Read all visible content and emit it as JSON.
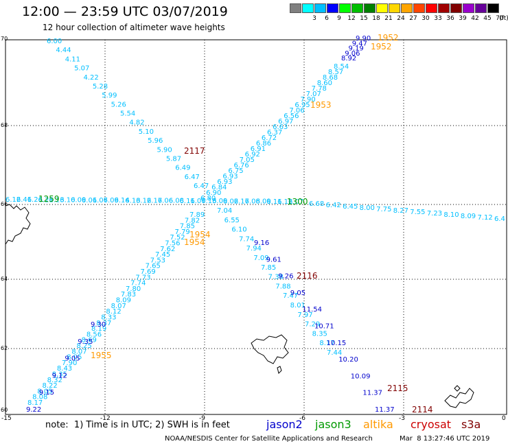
{
  "title": "12:00  —  23:59  UTC  03/07/2019",
  "subtitle": "12 hour collection of altimeter wave heights",
  "colorbar": {
    "unit": "(ft)",
    "bins": [
      {
        "label": "",
        "color": "#808080"
      },
      {
        "label": "3",
        "color": "#00ffff"
      },
      {
        "label": "6",
        "color": "#00bfff"
      },
      {
        "label": "9",
        "color": "#0000ff"
      },
      {
        "label": "12",
        "color": "#00ff00"
      },
      {
        "label": "15",
        "color": "#00bf00"
      },
      {
        "label": "18",
        "color": "#008000"
      },
      {
        "label": "21",
        "color": "#ffff00"
      },
      {
        "label": "24",
        "color": "#ffd700"
      },
      {
        "label": "27",
        "color": "#ffa500"
      },
      {
        "label": "30",
        "color": "#ff4500"
      },
      {
        "label": "33",
        "color": "#ff0000"
      },
      {
        "label": "36",
        "color": "#a00000"
      },
      {
        "label": "39",
        "color": "#800000"
      },
      {
        "label": "42",
        "color": "#9900cc"
      },
      {
        "label": "45",
        "color": "#660099"
      },
      {
        "label": "70",
        "color": "#000000"
      }
    ]
  },
  "axes": {
    "lat_labels": [
      "70",
      "68",
      "66",
      "64",
      "62",
      "60"
    ],
    "lon_labels": [
      "-15",
      "-12",
      "-9",
      "-6",
      "-3",
      "0"
    ]
  },
  "satellites": [
    {
      "name": "jason2",
      "color": "#0000cc"
    },
    {
      "name": "jason3",
      "color": "#009900"
    },
    {
      "name": "altika",
      "color": "#ff9900"
    },
    {
      "name": "cryosat",
      "color": "#cc0000"
    },
    {
      "name": "s3a",
      "color": "#800000"
    }
  ],
  "track_colors": {
    "cyan": "#00bfff",
    "blue": "#0000cc",
    "green": "#009900",
    "orange": "#ff9900",
    "darkred": "#800000"
  },
  "tracks": {
    "track_a": {
      "cyan": [
        "6.00",
        "4.44",
        "4.11",
        "5.07",
        "4.22",
        "5.28",
        "5.99",
        "5.26",
        "5.54",
        "4.82",
        "5.10",
        "5.96",
        "5.90",
        "5.87",
        "6.49",
        "6.47",
        "6.47"
      ],
      "time": "2117"
    },
    "track_b": {
      "cyan": [
        "7.04",
        "6.55",
        "6.10",
        "7.74",
        "7.94",
        "7.09",
        "7.85",
        "7.38",
        "7.88",
        "7.47",
        "8.01",
        "7.97",
        "7.29",
        "8.35",
        "8.17",
        "7.44"
      ],
      "blue": [
        "9.16",
        "9.61",
        "9.26",
        "9.05",
        "11.54",
        "10.71",
        "10.15",
        "10.20",
        "10.09",
        "11.37",
        "11.37"
      ],
      "time_mid": "2116",
      "time_end": "2115",
      "time_end2": "2114"
    },
    "track_c": {
      "blue": [
        "9.90",
        "9.47",
        "9.19",
        "9.06",
        "8.92"
      ],
      "cyan": [
        "8.54",
        "8.57",
        "8.68",
        "8.60",
        "7.78",
        "7.07",
        "7.90",
        "6.95",
        "7.06",
        "6.56",
        "6.97",
        "6.63",
        "6.37",
        "6.72",
        "6.86",
        "6.91",
        "6.92",
        "7.05",
        "6.76",
        "6.75",
        "6.93",
        "6.93",
        "6.84",
        "6.90",
        "6.80"
      ],
      "time1": "1952",
      "time2": "1953",
      "time3": "1954",
      "time4": "1955"
    },
    "track_c_lower": {
      "cyan": [
        "7.89",
        "7.82",
        "7.85",
        "7.79",
        "7.52",
        "7.56",
        "7.62",
        "7.45",
        "7.53",
        "7.65",
        "7.69",
        "7.73",
        "7.74",
        "7.80",
        "7.83",
        "8.09",
        "8.07",
        "8.12",
        "8.33",
        "8.37",
        "8.19",
        "8.56",
        "8.69",
        "8.25",
        "8.07",
        "8.05",
        "7.90",
        "8.43",
        "8.35",
        "8.32",
        "8.22",
        "8.05",
        "8.08",
        "8.17"
      ],
      "blue": [
        "9.30",
        "9.35",
        "9.05",
        "9.12",
        "9.15",
        "9.22"
      ]
    },
    "track_d": {
      "cyan_left": [
        "6.12",
        "6.41",
        "6.26",
        "6.21",
        "6.13",
        "6.10",
        "6.09",
        "6.01",
        "6.07",
        "6.09",
        "6.14",
        "6.13",
        "6.12",
        "6.17",
        "6.06",
        "6.08",
        "6.11",
        "6.07",
        "6.13",
        "6.09",
        "6.02",
        "6.17",
        "6.08",
        "6.09",
        "6.11",
        "6.12",
        "6.07"
      ],
      "cyan_right": [
        "6.68",
        "6.42",
        "6.45",
        "8.00",
        "7.75",
        "8.27",
        "7.55",
        "7.23",
        "8.10",
        "8.09",
        "7.12",
        "6.4"
      ],
      "time_left": "1259",
      "time_mid": "1300"
    }
  }
}
